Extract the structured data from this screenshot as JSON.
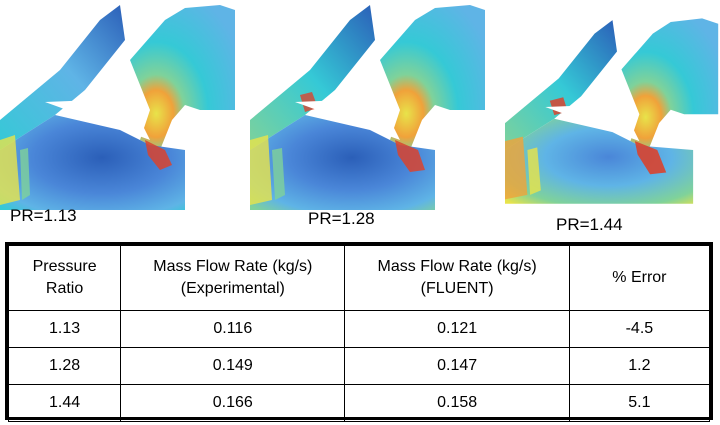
{
  "panels": [
    {
      "label": "PR=1.13"
    },
    {
      "label": "PR=1.28"
    },
    {
      "label": "PR=1.44"
    }
  ],
  "colormap": {
    "deep_blue": "#2b5fb8",
    "mid_blue": "#4a86d8",
    "light_blue": "#5fb4e6",
    "cyan": "#35c9d6",
    "green": "#7fd29a",
    "yellow": "#e8e34a",
    "orange": "#f0a23a",
    "red": "#d9432e"
  },
  "table": {
    "headers": [
      [
        "Pressure",
        "Ratio"
      ],
      [
        "Mass Flow Rate (kg/s)",
        "(Experimental)"
      ],
      [
        "Mass Flow Rate (kg/s)",
        "(FLUENT)"
      ],
      [
        "% Error",
        ""
      ]
    ],
    "rows": [
      [
        "1.13",
        "0.116",
        "0.121",
        "-4.5"
      ],
      [
        "1.28",
        "0.149",
        "0.147",
        "1.2"
      ],
      [
        "1.44",
        "0.166",
        "0.158",
        "5.1"
      ]
    ]
  }
}
